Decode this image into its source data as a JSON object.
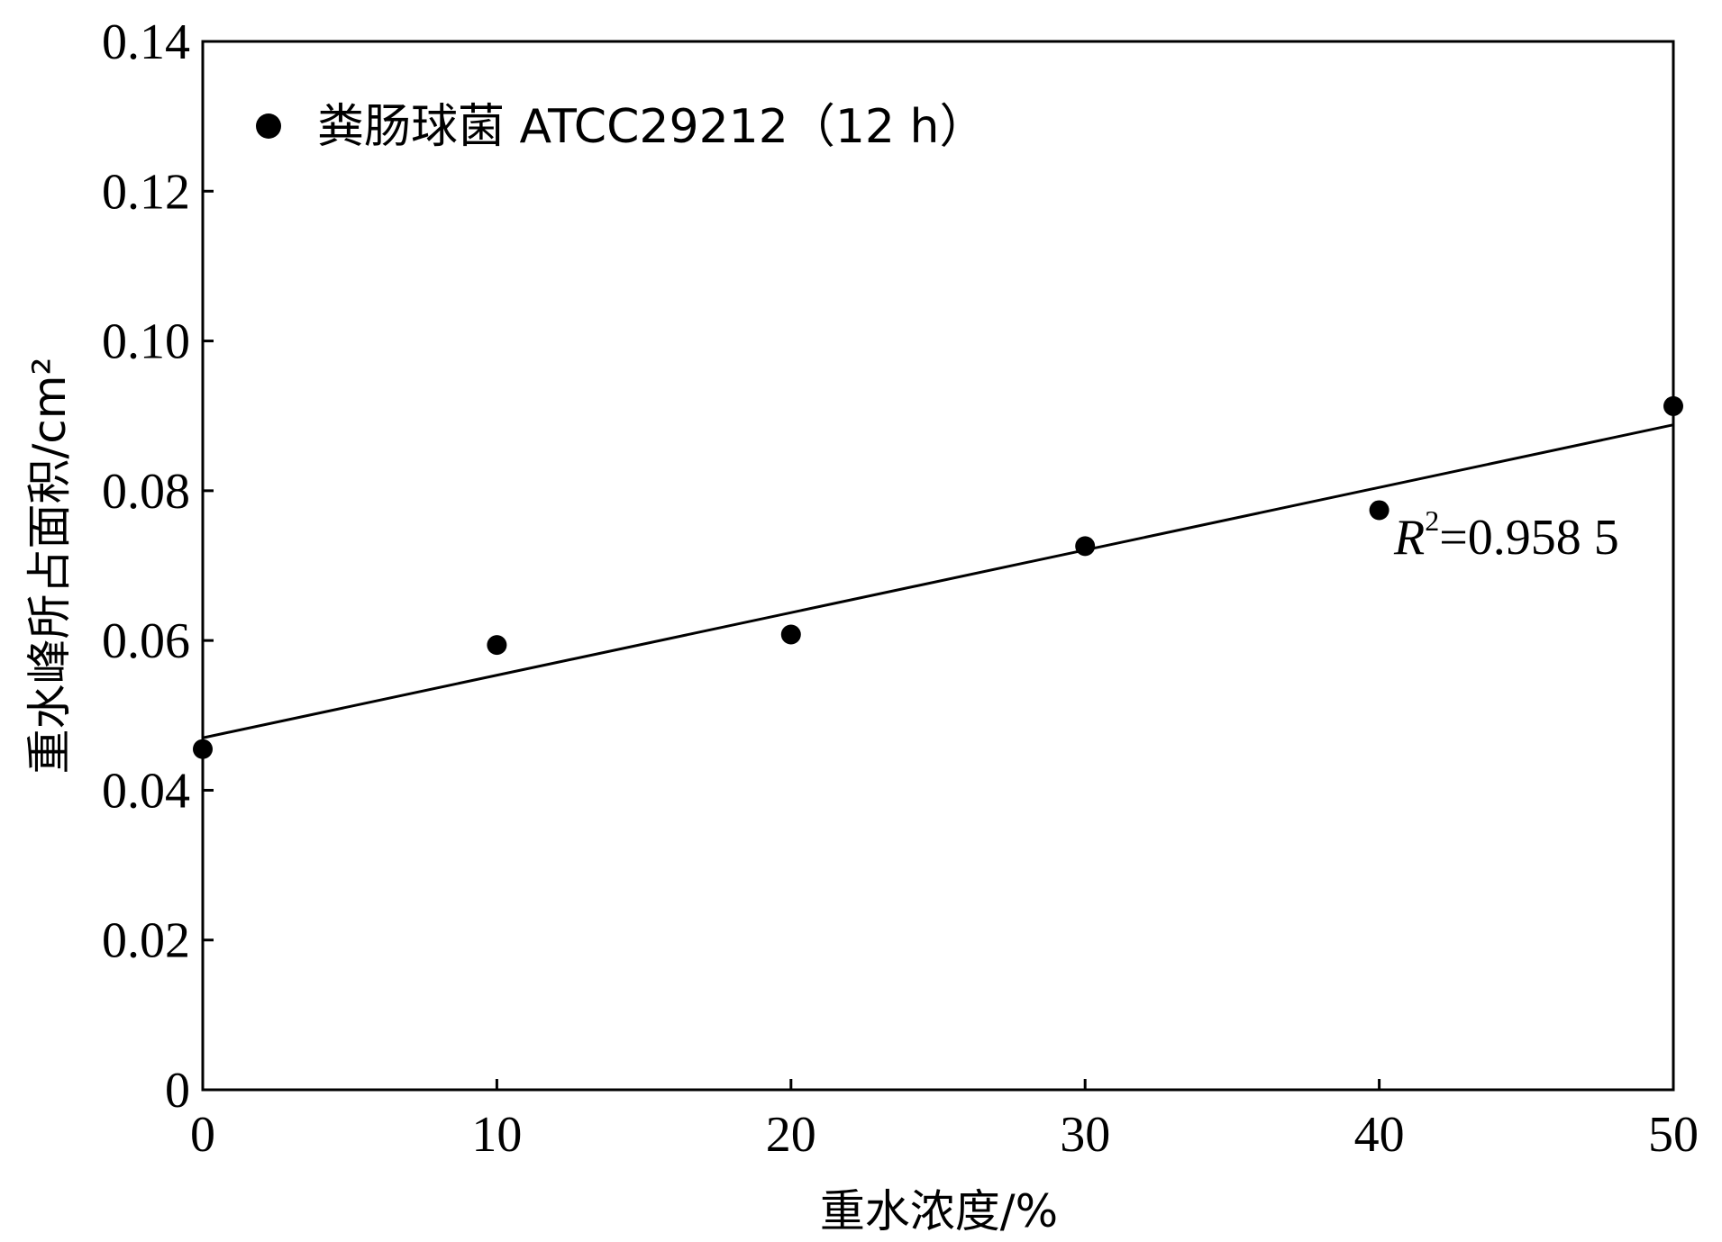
{
  "chart_data": {
    "type": "scatter",
    "xlabel": "重水浓度/%",
    "ylabel": "重水峰所占面积/cm²",
    "xlim": [
      0,
      50
    ],
    "ylim": [
      0,
      0.14
    ],
    "x_ticks": [
      "0",
      "10",
      "20",
      "30",
      "40",
      "50"
    ],
    "y_ticks": [
      "0",
      "0.02",
      "0.04",
      "0.06",
      "0.08",
      "0.10",
      "0.12",
      "0.14"
    ],
    "grid": false,
    "legend_position": "top-left",
    "series": [
      {
        "name": "粪肠球菌 ATCC29212（12 h）",
        "marker": "filled-circle",
        "color": "#000000",
        "x": [
          0,
          10,
          20,
          30,
          40,
          50
        ],
        "y": [
          0.0455,
          0.0594,
          0.0608,
          0.0726,
          0.0774,
          0.0913
        ]
      }
    ],
    "fit_line": {
      "x": [
        0,
        50
      ],
      "y": [
        0.047,
        0.0888
      ],
      "color": "#000000"
    },
    "annotation": {
      "r_symbol": "R",
      "r_power": "2",
      "r_value": "=0.958 5"
    }
  }
}
